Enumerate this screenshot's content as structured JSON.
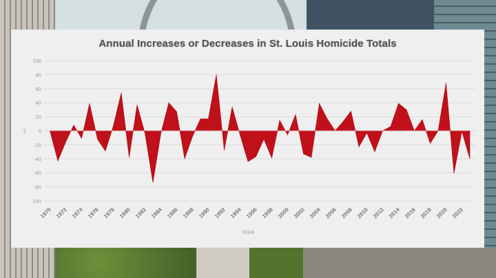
{
  "chart_data": {
    "type": "area",
    "title": "Annual Increases or Decreases in St. Louis Homicide Totals",
    "xlabel": "YEAR",
    "ylabel": "+/-",
    "ylim": [
      -100,
      100
    ],
    "yticks": [
      100,
      80,
      60,
      40,
      20,
      0,
      -20,
      -40,
      -60,
      -80,
      -100
    ],
    "xtick_labels": [
      "1970",
      "1972",
      "1974",
      "1976",
      "1978",
      "1980",
      "1982",
      "1984",
      "1986",
      "1988",
      "1990",
      "1992",
      "1994",
      "1996",
      "1998",
      "2000",
      "2002",
      "2004",
      "2006",
      "2008",
      "2010",
      "2012",
      "2014",
      "2016",
      "2018",
      "2020",
      "2022"
    ],
    "grid": true,
    "legend": null,
    "fill_color": "#c0101a",
    "x": [
      1970,
      1971,
      1972,
      1973,
      1974,
      1975,
      1976,
      1977,
      1978,
      1979,
      1980,
      1981,
      1982,
      1983,
      1984,
      1985,
      1986,
      1987,
      1988,
      1989,
      1990,
      1991,
      1992,
      1993,
      1994,
      1995,
      1996,
      1997,
      1998,
      1999,
      2000,
      2001,
      2002,
      2003,
      2004,
      2005,
      2006,
      2007,
      2008,
      2009,
      2010,
      2011,
      2012,
      2013,
      2014,
      2015,
      2016,
      2017,
      2018,
      2019,
      2020,
      2021,
      2022,
      2023
    ],
    "values": [
      0,
      -43,
      -16,
      8,
      -11,
      39,
      -12,
      -29,
      7,
      54,
      -38,
      37,
      -4,
      -74,
      -4,
      40,
      27,
      -40,
      -8,
      17,
      17,
      80,
      -28,
      34,
      -6,
      -44,
      -37,
      -12,
      -39,
      15,
      -6,
      23,
      -33,
      -38,
      39,
      17,
      0,
      13,
      28,
      -23,
      -3,
      -30,
      0,
      6,
      39,
      30,
      0,
      16,
      -18,
      0,
      68,
      -61,
      -1,
      -40
    ]
  }
}
